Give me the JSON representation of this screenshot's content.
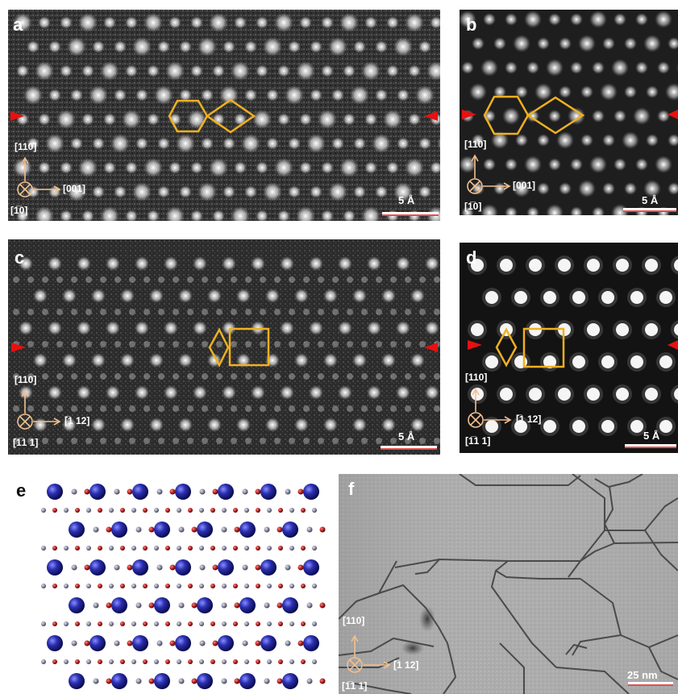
{
  "panels": {
    "a": {
      "label": "a",
      "dir_up": "[110]",
      "dir_right": "[001]",
      "dir_in": "[1̅0]",
      "scale": "5 Å"
    },
    "b": {
      "label": "b",
      "dir_up": "[110]",
      "dir_right": "[001]",
      "dir_in": "[1̅0]",
      "scale": "5 Å"
    },
    "c": {
      "label": "c",
      "dir_up": "[110]",
      "dir_right": "[̅1 12]",
      "dir_in": "[1̅1 1]",
      "scale": "5 Å"
    },
    "d": {
      "label": "d",
      "dir_up": "[110]",
      "dir_right": "[̅1 12]",
      "dir_in": "[1̅1 1]",
      "scale": "5 Å"
    },
    "e": {
      "label": "e"
    },
    "f": {
      "label": "f",
      "dir_up": "[110]",
      "dir_right": "[̅1 12]",
      "dir_in": "[1̅1 1]",
      "scale": "25 nm"
    }
  },
  "colors": {
    "overlay": "#f0b020",
    "marker": "#e81010",
    "axis": "#f0c090",
    "atom_large": "#2a2fb0",
    "atom_red": "#b02020",
    "atom_grey": "#8888a0"
  }
}
